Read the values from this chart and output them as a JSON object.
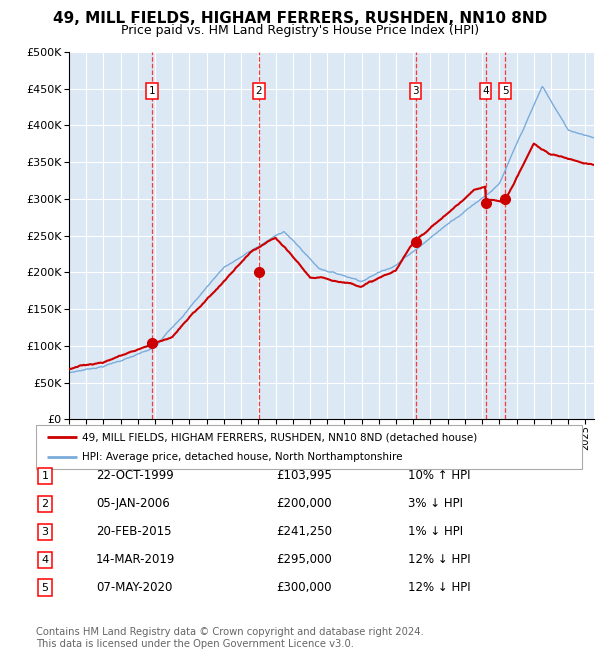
{
  "title": "49, MILL FIELDS, HIGHAM FERRERS, RUSHDEN, NN10 8ND",
  "subtitle": "Price paid vs. HM Land Registry's House Price Index (HPI)",
  "bg_color": "#dce9f5",
  "hpi_color": "#7aabdb",
  "price_color": "#cc0000",
  "marker_color": "#cc0000",
  "ylim": [
    0,
    500000
  ],
  "yticks": [
    0,
    50000,
    100000,
    150000,
    200000,
    250000,
    300000,
    350000,
    400000,
    450000,
    500000
  ],
  "transactions": [
    {
      "num": 1,
      "date": "22-OCT-1999",
      "price": 103995,
      "hpi_pct": "10% ↑ HPI",
      "year": 1999.81
    },
    {
      "num": 2,
      "date": "05-JAN-2006",
      "price": 200000,
      "hpi_pct": "3% ↓ HPI",
      "year": 2006.02
    },
    {
      "num": 3,
      "date": "20-FEB-2015",
      "price": 241250,
      "hpi_pct": "1% ↓ HPI",
      "year": 2015.13
    },
    {
      "num": 4,
      "date": "14-MAR-2019",
      "price": 295000,
      "hpi_pct": "12% ↓ HPI",
      "year": 2019.2
    },
    {
      "num": 5,
      "date": "07-MAY-2020",
      "price": 300000,
      "hpi_pct": "12% ↓ HPI",
      "year": 2020.35
    }
  ],
  "legend_line1": "49, MILL FIELDS, HIGHAM FERRERS, RUSHDEN, NN10 8ND (detached house)",
  "legend_line2": "HPI: Average price, detached house, North Northamptonshire",
  "footer": "Contains HM Land Registry data © Crown copyright and database right 2024.\nThis data is licensed under the Open Government Licence v3.0.",
  "xstart": 1995.0,
  "xend": 2025.5
}
